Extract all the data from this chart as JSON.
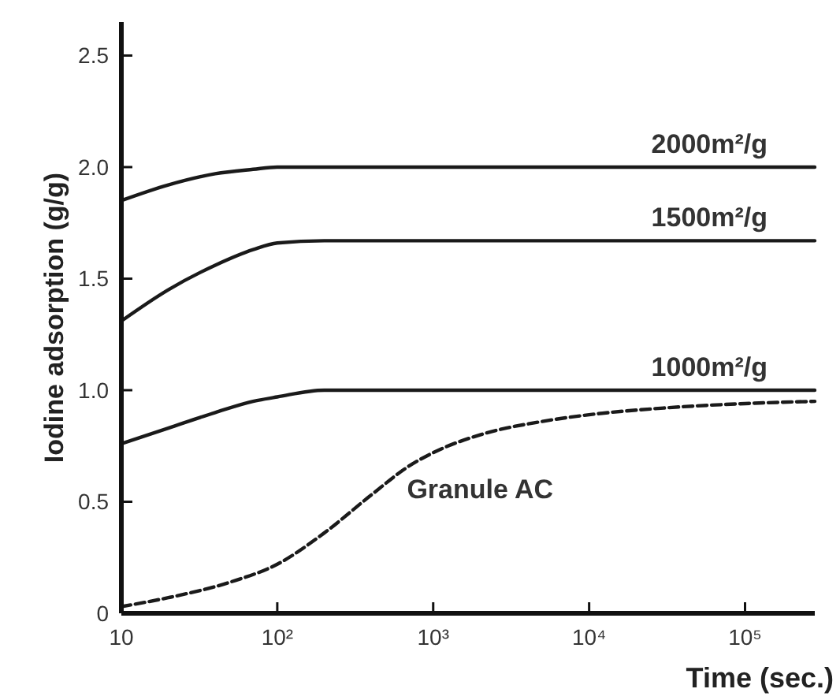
{
  "chart_data": {
    "type": "line",
    "xlabel": "Time (sec.)",
    "ylabel": "Iodine adsorption (g/g)",
    "log": "x",
    "grid": false,
    "xlim": [
      10,
      280000
    ],
    "ylim": [
      0,
      2.65
    ],
    "xticks": [
      10,
      {
        "value": 100,
        "label": "10²"
      },
      {
        "value": 1000,
        "label": "10³"
      },
      {
        "value": 10000,
        "label": "10⁴"
      },
      {
        "value": 100000,
        "label": "10⁵"
      }
    ],
    "yticks": [
      0,
      0.5,
      {
        "value": 1,
        "label": "1.0"
      },
      1.5,
      {
        "value": 2,
        "label": "2.0"
      },
      2.5
    ],
    "series": [
      {
        "name": "2000m²/g",
        "color": "#1a1a1a",
        "line_style": "solid",
        "x": [
          10,
          20,
          40,
          70,
          100,
          200,
          280000
        ],
        "values": [
          1.85,
          1.92,
          1.97,
          1.99,
          2.0,
          2.0,
          2.0
        ]
      },
      {
        "name": "1500m²/g",
        "color": "#1a1a1a",
        "line_style": "solid",
        "x": [
          10,
          20,
          40,
          70,
          100,
          200,
          280000
        ],
        "values": [
          1.31,
          1.45,
          1.56,
          1.63,
          1.66,
          1.67,
          1.67
        ]
      },
      {
        "name": "1000m²/g",
        "color": "#1a1a1a",
        "line_style": "solid",
        "x": [
          10,
          20,
          40,
          70,
          100,
          200,
          280000
        ],
        "values": [
          0.76,
          0.83,
          0.9,
          0.95,
          0.97,
          1.0,
          1.0
        ]
      },
      {
        "name": "Granule AC",
        "color": "#1a1a1a",
        "line_style": "dashed",
        "x": [
          10,
          20,
          50,
          100,
          200,
          400,
          700,
          1000,
          2000,
          5000,
          10000,
          30000,
          100000,
          280000
        ],
        "values": [
          0.03,
          0.07,
          0.14,
          0.22,
          0.36,
          0.53,
          0.66,
          0.72,
          0.8,
          0.86,
          0.89,
          0.92,
          0.94,
          0.95
        ]
      }
    ]
  }
}
